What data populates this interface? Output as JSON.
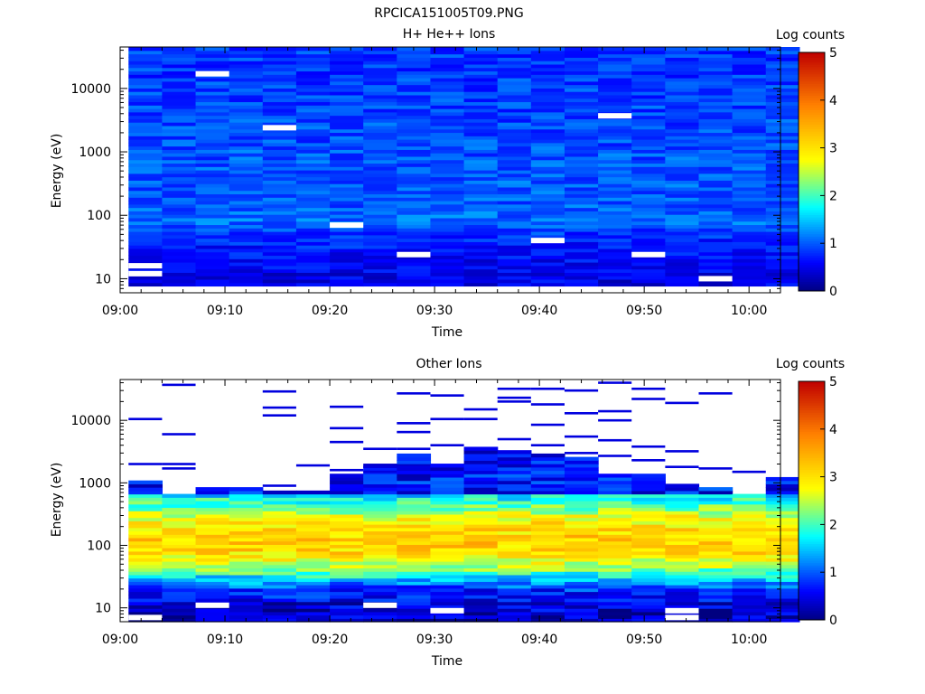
{
  "figure_title": "RPCICA151005T09.PNG",
  "panels": [
    {
      "id": "top",
      "title": "H+ He++ Ions",
      "xlabel": "Time",
      "ylabel": "Energy (eV)",
      "colorbar_label": "Log counts",
      "colorbar_ticks": [
        "0",
        "1",
        "2",
        "3",
        "4",
        "5"
      ]
    },
    {
      "id": "bottom",
      "title": "Other Ions",
      "xlabel": "Time",
      "ylabel": "Energy (eV)",
      "colorbar_label": "Log counts",
      "colorbar_ticks": [
        "0",
        "1",
        "2",
        "3",
        "4",
        "5"
      ]
    }
  ],
  "chart_data": [
    {
      "type": "heatmap",
      "title": "H+ He++ Ions",
      "xlabel": "Time",
      "ylabel": "Energy (eV)",
      "x_tick_labels": [
        "09:00",
        "09:10",
        "09:20",
        "09:30",
        "09:40",
        "09:50",
        "10:00"
      ],
      "y_tick_labels": [
        "10",
        "100",
        "1000",
        "10000"
      ],
      "y_scale": "log",
      "y_range_eV": [
        6,
        45000
      ],
      "x_range_min": [
        0,
        63
      ],
      "time_bins_start_min": [
        0.8,
        4,
        7.2,
        10.4,
        13.6,
        16.8,
        20,
        23.2,
        26.4,
        29.6,
        32.8,
        36,
        39.2,
        42.4,
        45.6,
        48.8,
        52,
        55.2,
        58.4,
        61.6
      ],
      "colorbar": {
        "label": "Log counts",
        "range": [
          0,
          5
        ],
        "colormap": "rainbow"
      },
      "energy_profile_log_counts": [
        {
          "energy_eV": 8,
          "log_counts": 0.5
        },
        {
          "energy_eV": 12,
          "log_counts": 0.5
        },
        {
          "energy_eV": 20,
          "log_counts": 0.6
        },
        {
          "energy_eV": 30,
          "log_counts": 0.7
        },
        {
          "energy_eV": 50,
          "log_counts": 0.8
        },
        {
          "energy_eV": 80,
          "log_counts": 1.1
        },
        {
          "energy_eV": 150,
          "log_counts": 1.0
        },
        {
          "energy_eV": 400,
          "log_counts": 1.0
        },
        {
          "energy_eV": 1500,
          "log_counts": 0.95
        },
        {
          "energy_eV": 5000,
          "log_counts": 0.9
        },
        {
          "energy_eV": 20000,
          "log_counts": 0.85
        },
        {
          "energy_eV": 40000,
          "log_counts": 0.85
        }
      ],
      "empty_cells": [
        {
          "bin": 0,
          "energy_eV": 12
        },
        {
          "bin": 0,
          "energy_eV": 16
        },
        {
          "bin": 2,
          "energy_eV": 17000
        },
        {
          "bin": 4,
          "energy_eV": 2400
        },
        {
          "bin": 6,
          "energy_eV": 70
        },
        {
          "bin": 8,
          "energy_eV": 24
        },
        {
          "bin": 12,
          "energy_eV": 40
        },
        {
          "bin": 14,
          "energy_eV": 3700
        },
        {
          "bin": 15,
          "energy_eV": 24
        },
        {
          "bin": 17,
          "energy_eV": 10
        }
      ]
    },
    {
      "type": "heatmap",
      "title": "Other Ions",
      "xlabel": "Time",
      "ylabel": "Energy (eV)",
      "x_tick_labels": [
        "09:00",
        "09:10",
        "09:20",
        "09:30",
        "09:40",
        "09:50",
        "10:00"
      ],
      "y_tick_labels": [
        "10",
        "100",
        "1000",
        "10000"
      ],
      "y_scale": "log",
      "y_range_eV": [
        6,
        45000
      ],
      "x_range_min": [
        0,
        63
      ],
      "time_bins_start_min": [
        0.8,
        4,
        7.2,
        10.4,
        13.6,
        16.8,
        20,
        23.2,
        26.4,
        29.6,
        32.8,
        36,
        39.2,
        42.4,
        45.6,
        48.8,
        52,
        55.2,
        58.4,
        61.6
      ],
      "colorbar": {
        "label": "Log counts",
        "range": [
          0,
          5
        ],
        "colormap": "rainbow"
      },
      "energy_profile_log_counts": [
        {
          "energy_eV": 8,
          "log_counts": 0.3
        },
        {
          "energy_eV": 13,
          "log_counts": 0.5
        },
        {
          "energy_eV": 20,
          "log_counts": 0.8
        },
        {
          "energy_eV": 30,
          "log_counts": 1.6
        },
        {
          "energy_eV": 45,
          "log_counts": 2.4
        },
        {
          "energy_eV": 80,
          "log_counts": 3.1
        },
        {
          "energy_eV": 130,
          "log_counts": 3.2
        },
        {
          "energy_eV": 250,
          "log_counts": 2.9
        },
        {
          "energy_eV": 450,
          "log_counts": 2.1
        },
        {
          "energy_eV": 800,
          "log_counts": 1.3
        },
        {
          "energy_eV": 1200,
          "log_counts": 0.6
        }
      ],
      "high_energy_upper_eV": [
        1000,
        600,
        850,
        800,
        700,
        700,
        1300,
        1900,
        2700,
        1800,
        3700,
        3200,
        2700,
        2500,
        1400,
        1400,
        900,
        800,
        600,
        1100
      ],
      "sparse_lines_eV": [
        [
          10500,
          2000
        ],
        [
          37000,
          6000,
          2000,
          1700
        ],
        [],
        [],
        [
          29000,
          16000,
          12000,
          900
        ],
        [
          1900
        ],
        [
          16500,
          7500,
          4500,
          1600
        ],
        [
          3500,
          1800,
          1500
        ],
        [
          27000,
          9000,
          6500,
          3500,
          1800
        ],
        [
          25000,
          10500,
          4000
        ],
        [
          15000,
          10500
        ],
        [
          32000,
          23000,
          20000,
          5000
        ],
        [
          32000,
          18000,
          8500,
          4000
        ],
        [
          30000,
          13000,
          5500,
          3000
        ],
        [
          40000,
          14000,
          10000,
          4800,
          2700
        ],
        [
          32000,
          22000,
          3800,
          2300
        ],
        [
          19000,
          3200,
          1800
        ],
        [
          27000,
          1700
        ],
        [
          1500
        ],
        []
      ],
      "empty_cells": [
        {
          "bin": 0,
          "energy_eV": 7
        },
        {
          "bin": 2,
          "energy_eV": 11
        },
        {
          "bin": 7,
          "energy_eV": 11
        },
        {
          "bin": 9,
          "energy_eV": 9
        },
        {
          "bin": 16,
          "energy_eV": 7
        },
        {
          "bin": 16,
          "energy_eV": 9
        }
      ]
    }
  ]
}
